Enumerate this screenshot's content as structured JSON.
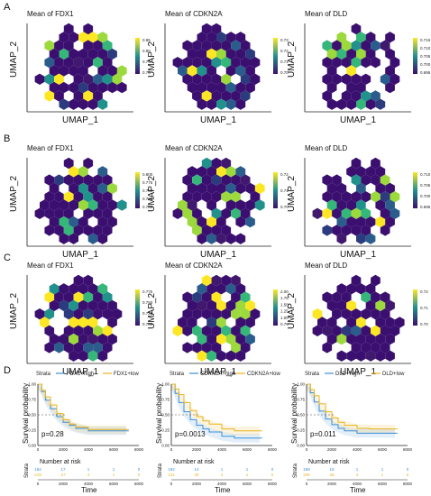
{
  "panel_letters": [
    "A",
    "B",
    "C",
    "D"
  ],
  "hex_axes": {
    "x": "UMAP_1",
    "y": "UMAP_2"
  },
  "colors": {
    "low": "#3b0f70",
    "mid": "#21918c",
    "high": "#fde725",
    "bg": "#ffffff"
  },
  "hex_panels": [
    {
      "row": 0,
      "title": "Mean of FDX1",
      "legend": [
        "0.85",
        "0.80",
        "0.75",
        "0.70"
      ]
    },
    {
      "row": 0,
      "title": "Mean of CDKN2A",
      "legend": [
        "0.73",
        "0.72",
        "0.71",
        "0.70"
      ]
    },
    {
      "row": 0,
      "title": "Mean of DLD",
      "legend": [
        "0.715",
        "0.710",
        "0.705",
        "0.700",
        "0.695"
      ]
    },
    {
      "row": 1,
      "title": "Mean of FDX1",
      "legend": [
        "0.800",
        "0.775",
        "0.750",
        "0.725",
        "0.700"
      ]
    },
    {
      "row": 1,
      "title": "Mean of CDKN2A",
      "legend": [
        "0.72",
        "0.71",
        "0.70"
      ]
    },
    {
      "row": 1,
      "title": "Mean of DLD",
      "legend": [
        "0.710",
        "0.705",
        "0.700",
        "0.695"
      ]
    },
    {
      "row": 2,
      "title": "Mean of FDX1",
      "legend": [
        "0.775",
        "0.750",
        "0.725",
        "0.700"
      ]
    },
    {
      "row": 2,
      "title": "Mean of CDKN2A",
      "legend": [
        "2.00",
        "1.75",
        "1.50",
        "1.25",
        "1.00",
        "0.75"
      ]
    },
    {
      "row": 2,
      "title": "Mean of DLD",
      "legend": [
        "0.72",
        "0.71",
        "0.70"
      ]
    }
  ],
  "km_panels": [
    {
      "strata_label": "Strata",
      "high_label": "FDX1+high",
      "low_label": "FDX1+low",
      "pvalue": "p=0.28",
      "risk_title": "Number at risk",
      "risk_high": [
        "184",
        "17",
        "1",
        "1",
        "0"
      ],
      "risk_low": [
        "219",
        "27",
        "4",
        "1",
        "0"
      ]
    },
    {
      "strata_label": "Strata",
      "high_label": "CDKN2A+high",
      "low_label": "CDKN2A+low",
      "pvalue": "p=0.0013",
      "risk_title": "Number at risk",
      "risk_high": [
        "192",
        "14",
        "1",
        "1",
        "0"
      ],
      "risk_low": [
        "211",
        "30",
        "4",
        "1",
        "0"
      ]
    },
    {
      "strata_label": "Strata",
      "high_label": "DLD+high",
      "low_label": "DLD+low",
      "pvalue": "p=0.011",
      "risk_title": "Number at risk",
      "risk_high": [
        "198",
        "16",
        "1",
        "1",
        "0"
      ],
      "risk_low": [
        "205",
        "28",
        "4",
        "1",
        "0"
      ]
    }
  ],
  "km_axes": {
    "y_label": "Survival probability",
    "x_label": "Time",
    "strata_axis": "Strata",
    "y_ticks": [
      "0.00",
      "0.25",
      "0.50",
      "0.75",
      "1.00"
    ],
    "x_ticks": [
      "0",
      "2000",
      "4000",
      "6000",
      "8000"
    ]
  },
  "chart_data": [
    {
      "type": "line",
      "title": "",
      "xlabel": "Time",
      "ylabel": "Survival probability",
      "xlim": [
        0,
        8000
      ],
      "ylim": [
        0,
        1
      ],
      "x": [
        0,
        300,
        600,
        1000,
        1500,
        2000,
        2500,
        3000,
        4000,
        5000,
        6000,
        7000
      ],
      "series": [
        {
          "name": "FDX1+high",
          "values": [
            1.0,
            0.88,
            0.74,
            0.6,
            0.47,
            0.38,
            0.33,
            0.28,
            0.24,
            0.24,
            0.24,
            0.24
          ]
        },
        {
          "name": "FDX1+low",
          "values": [
            1.0,
            0.9,
            0.79,
            0.66,
            0.52,
            0.42,
            0.35,
            0.3,
            0.26,
            0.26,
            0.26,
            0.26
          ]
        }
      ],
      "annotation": "p=0.28"
    },
    {
      "type": "line",
      "title": "",
      "xlabel": "Time",
      "ylabel": "Survival probability",
      "xlim": [
        0,
        8000
      ],
      "ylim": [
        0,
        1
      ],
      "x": [
        0,
        300,
        600,
        1000,
        1500,
        2000,
        2500,
        3000,
        4000,
        5000,
        6000,
        7000
      ],
      "series": [
        {
          "name": "CDKN2A+high",
          "values": [
            1.0,
            0.85,
            0.7,
            0.55,
            0.42,
            0.33,
            0.27,
            0.22,
            0.15,
            0.12,
            0.12,
            0.12
          ]
        },
        {
          "name": "CDKN2A+low",
          "values": [
            1.0,
            0.92,
            0.83,
            0.7,
            0.57,
            0.47,
            0.4,
            0.35,
            0.27,
            0.24,
            0.24,
            0.24
          ]
        }
      ],
      "annotation": "p=0.0013"
    },
    {
      "type": "line",
      "title": "",
      "xlabel": "Time",
      "ylabel": "Survival probability",
      "xlim": [
        0,
        8000
      ],
      "ylim": [
        0,
        1
      ],
      "x": [
        0,
        300,
        600,
        1000,
        1500,
        2000,
        2500,
        3000,
        4000,
        5000,
        6000,
        7000
      ],
      "series": [
        {
          "name": "DLD+high",
          "values": [
            1.0,
            0.86,
            0.71,
            0.56,
            0.43,
            0.34,
            0.28,
            0.24,
            0.2,
            0.2,
            0.2,
            0.2
          ]
        },
        {
          "name": "DLD+low",
          "values": [
            1.0,
            0.91,
            0.81,
            0.68,
            0.55,
            0.45,
            0.38,
            0.33,
            0.28,
            0.27,
            0.27,
            0.27
          ]
        }
      ],
      "annotation": "p=0.011"
    }
  ]
}
